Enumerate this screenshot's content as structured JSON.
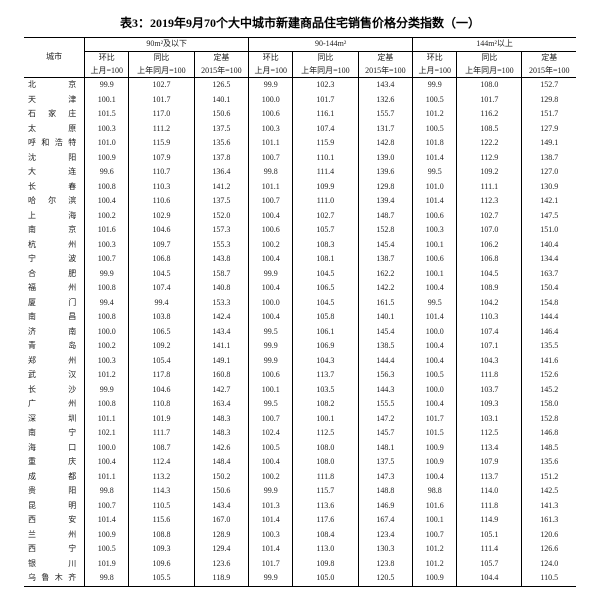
{
  "title": "表3：2019年9月70个大中城市新建商品住宅销售价格分类指数（一）",
  "groupHeaders": [
    "90m²及以下",
    "90-144m²",
    "144m²以上"
  ],
  "subHeaders": {
    "hb": "环比",
    "tb": "同比",
    "dj": "定基"
  },
  "subSub": {
    "hb": "上月=100",
    "tb": "上年同月=100",
    "dj": "2015年=100"
  },
  "cityLabel": "城市",
  "rows": [
    {
      "c": "北　　京",
      "v": [
        "99.9",
        "102.7",
        "126.5",
        "99.9",
        "102.3",
        "143.4",
        "99.9",
        "108.0",
        "152.7"
      ]
    },
    {
      "c": "天　　津",
      "v": [
        "100.1",
        "101.7",
        "140.1",
        "100.0",
        "101.7",
        "132.6",
        "100.5",
        "101.7",
        "129.8"
      ]
    },
    {
      "c": "石 家 庄",
      "v": [
        "101.5",
        "117.0",
        "150.6",
        "100.6",
        "116.1",
        "155.7",
        "101.2",
        "116.2",
        "151.7"
      ]
    },
    {
      "c": "太　　原",
      "v": [
        "100.3",
        "111.2",
        "137.5",
        "100.3",
        "107.4",
        "131.7",
        "100.5",
        "108.5",
        "127.9"
      ]
    },
    {
      "c": "呼和浩特",
      "v": [
        "101.0",
        "115.9",
        "135.6",
        "101.1",
        "115.9",
        "142.8",
        "101.8",
        "122.2",
        "149.1"
      ]
    },
    {
      "c": "沈　　阳",
      "v": [
        "100.9",
        "107.9",
        "137.8",
        "100.7",
        "110.1",
        "139.0",
        "101.4",
        "112.9",
        "138.7"
      ]
    },
    {
      "c": "大　　连",
      "v": [
        "99.6",
        "110.7",
        "136.4",
        "99.8",
        "111.4",
        "139.6",
        "99.5",
        "109.2",
        "127.0"
      ]
    },
    {
      "c": "长　　春",
      "v": [
        "100.8",
        "110.3",
        "141.2",
        "101.1",
        "109.9",
        "129.8",
        "101.0",
        "111.1",
        "130.9"
      ]
    },
    {
      "c": "哈 尔 滨",
      "v": [
        "100.4",
        "110.6",
        "137.5",
        "100.7",
        "111.0",
        "139.4",
        "101.4",
        "112.3",
        "142.1"
      ]
    },
    {
      "c": "上　　海",
      "v": [
        "100.2",
        "102.9",
        "152.0",
        "100.4",
        "102.7",
        "148.7",
        "100.6",
        "102.7",
        "147.5"
      ]
    },
    {
      "c": "南　　京",
      "v": [
        "101.6",
        "104.6",
        "157.3",
        "100.6",
        "105.7",
        "152.8",
        "100.3",
        "107.0",
        "151.0"
      ]
    },
    {
      "c": "杭　　州",
      "v": [
        "100.3",
        "109.7",
        "155.3",
        "100.2",
        "108.3",
        "145.4",
        "100.1",
        "106.2",
        "140.4"
      ]
    },
    {
      "c": "宁　　波",
      "v": [
        "100.7",
        "106.8",
        "143.8",
        "100.4",
        "108.1",
        "138.7",
        "100.6",
        "106.8",
        "134.4"
      ]
    },
    {
      "c": "合　　肥",
      "v": [
        "99.9",
        "104.5",
        "158.7",
        "99.9",
        "104.5",
        "162.2",
        "100.1",
        "104.5",
        "163.7"
      ]
    },
    {
      "c": "福　　州",
      "v": [
        "100.8",
        "107.4",
        "140.8",
        "100.4",
        "106.5",
        "142.2",
        "100.4",
        "108.9",
        "150.4"
      ]
    },
    {
      "c": "厦　　门",
      "v": [
        "99.4",
        "99.4",
        "153.3",
        "100.0",
        "104.5",
        "161.5",
        "99.5",
        "104.2",
        "154.8"
      ]
    },
    {
      "c": "南　　昌",
      "v": [
        "100.8",
        "103.8",
        "142.4",
        "100.4",
        "105.8",
        "140.1",
        "101.4",
        "110.3",
        "144.4"
      ]
    },
    {
      "c": "济　　南",
      "v": [
        "100.0",
        "106.5",
        "143.4",
        "99.5",
        "106.1",
        "145.4",
        "100.0",
        "107.4",
        "146.4"
      ]
    },
    {
      "c": "青　　岛",
      "v": [
        "100.2",
        "109.2",
        "141.1",
        "99.9",
        "106.9",
        "138.5",
        "100.4",
        "107.1",
        "135.5"
      ]
    },
    {
      "c": "郑　　州",
      "v": [
        "100.3",
        "105.4",
        "149.1",
        "99.9",
        "104.3",
        "144.4",
        "100.4",
        "104.3",
        "141.6"
      ]
    },
    {
      "c": "武　　汉",
      "v": [
        "101.2",
        "117.8",
        "160.8",
        "100.6",
        "113.7",
        "156.3",
        "100.5",
        "111.8",
        "152.6"
      ]
    },
    {
      "c": "长　　沙",
      "v": [
        "99.9",
        "104.6",
        "142.7",
        "100.1",
        "103.5",
        "144.3",
        "100.0",
        "103.7",
        "145.2"
      ]
    },
    {
      "c": "广　　州",
      "v": [
        "100.8",
        "110.8",
        "163.4",
        "99.5",
        "108.2",
        "155.5",
        "100.4",
        "109.3",
        "158.0"
      ]
    },
    {
      "c": "深　　圳",
      "v": [
        "101.1",
        "101.9",
        "148.3",
        "100.7",
        "100.1",
        "147.2",
        "101.7",
        "103.1",
        "152.8"
      ]
    },
    {
      "c": "南　　宁",
      "v": [
        "102.1",
        "111.7",
        "148.3",
        "102.4",
        "112.5",
        "145.7",
        "101.5",
        "112.5",
        "146.8"
      ]
    },
    {
      "c": "海　　口",
      "v": [
        "100.0",
        "108.7",
        "142.6",
        "100.5",
        "108.0",
        "148.1",
        "100.9",
        "113.4",
        "148.5"
      ]
    },
    {
      "c": "重　　庆",
      "v": [
        "100.4",
        "112.4",
        "148.4",
        "100.4",
        "108.0",
        "137.5",
        "100.9",
        "107.9",
        "135.6"
      ]
    },
    {
      "c": "成　　都",
      "v": [
        "101.1",
        "113.2",
        "150.2",
        "100.2",
        "111.8",
        "147.3",
        "100.4",
        "113.7",
        "151.2"
      ]
    },
    {
      "c": "贵　　阳",
      "v": [
        "99.8",
        "114.3",
        "150.6",
        "99.9",
        "115.7",
        "148.8",
        "98.8",
        "114.0",
        "142.5"
      ]
    },
    {
      "c": "昆　　明",
      "v": [
        "100.7",
        "110.5",
        "143.4",
        "101.3",
        "113.6",
        "146.9",
        "101.6",
        "111.8",
        "141.3"
      ]
    },
    {
      "c": "西　　安",
      "v": [
        "101.4",
        "115.6",
        "167.0",
        "101.4",
        "117.6",
        "167.4",
        "100.1",
        "114.9",
        "161.3"
      ]
    },
    {
      "c": "兰　　州",
      "v": [
        "100.9",
        "108.8",
        "128.9",
        "100.3",
        "108.4",
        "123.4",
        "100.7",
        "105.1",
        "120.6"
      ]
    },
    {
      "c": "西　　宁",
      "v": [
        "100.5",
        "109.3",
        "129.4",
        "101.4",
        "113.0",
        "130.3",
        "101.2",
        "111.4",
        "126.6"
      ]
    },
    {
      "c": "银　　川",
      "v": [
        "101.9",
        "109.6",
        "123.6",
        "101.7",
        "109.8",
        "123.8",
        "101.2",
        "105.7",
        "124.0"
      ]
    },
    {
      "c": "乌鲁木齐",
      "v": [
        "99.8",
        "105.5",
        "118.9",
        "99.9",
        "105.0",
        "120.5",
        "100.9",
        "104.4",
        "110.5"
      ]
    }
  ]
}
